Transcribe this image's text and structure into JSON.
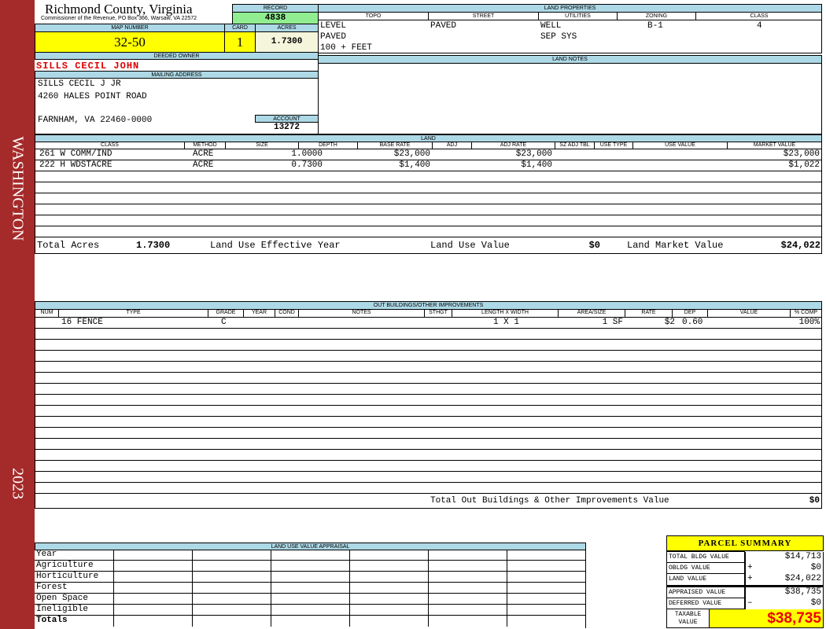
{
  "sidebar": {
    "district": "WASHINGTON",
    "year": "2023"
  },
  "header": {
    "county": "Richmond County, Virginia",
    "office": "Commissioner of the Revenue, PO Box 366, Warsaw, VA 22572"
  },
  "record": {
    "label": "RECORD",
    "value": "4838"
  },
  "map": {
    "label": "MAP NUMBER",
    "value": "32-50"
  },
  "card": {
    "label": "CARD",
    "value": "1"
  },
  "acres": {
    "label": "ACRES",
    "value": "1.7300"
  },
  "owner": {
    "label": "DEEDED OWNER",
    "value": "SILLS CECIL JOHN"
  },
  "mailing": {
    "label": "MAILING ADDRESS",
    "line1": "SILLS CECIL J JR",
    "line2": "4260 HALES POINT ROAD",
    "line3": "FARNHAM, VA 22460-0000"
  },
  "account": {
    "label": "ACCOUNT",
    "value": "13272"
  },
  "land_properties": {
    "label": "LAND PROPERTIES",
    "headers": [
      "TOPO",
      "STREET",
      "UTILITIES",
      "ZONING",
      "CLASS"
    ],
    "topo": [
      "LEVEL",
      "PAVED",
      "100 + FEET"
    ],
    "street": "PAVED",
    "utilities": [
      "WELL",
      "SEP SYS"
    ],
    "zoning": "B-1",
    "class": "4"
  },
  "land_notes": {
    "label": "LAND NOTES"
  },
  "land": {
    "label": "LAND",
    "headers": [
      "CLASS",
      "METHOD",
      "SIZE",
      "DEPTH",
      "BASE RATE",
      "ADJ",
      "ADJ RATE",
      "SZ ADJ TBL",
      "USE TYPE",
      "USE VALUE",
      "MARKET VALUE"
    ],
    "rows": [
      {
        "class": "261 W COMM/IND",
        "method": "ACRE",
        "size": "1.0000",
        "base_rate": "$23,000",
        "adj_rate": "$23,000",
        "market_value": "$23,000"
      },
      {
        "class": "222 H WDSTACRE",
        "method": "ACRE",
        "size": "0.7300",
        "base_rate": "$1,400",
        "adj_rate": "$1,400",
        "market_value": "$1,022"
      }
    ],
    "totals": {
      "total_acres_label": "Total Acres",
      "total_acres": "1.7300",
      "effective_year_label": "Land Use Effective Year",
      "use_value_label": "Land Use Value",
      "use_value": "$0",
      "market_value_label": "Land Market Value",
      "market_value": "$24,022"
    }
  },
  "outbuildings": {
    "label": "OUT BUILDINGS/OTHER IMPROVEMENTS",
    "headers": [
      "NUM",
      "TYPE",
      "GRADE",
      "YEAR",
      "COND",
      "NOTES",
      "STHGT",
      "LENGTH X WIDTH",
      "AREA/SIZE",
      "RATE",
      "DEP",
      "VALUE",
      "% COMP"
    ],
    "rows": [
      {
        "type": "16 FENCE",
        "grade": "C",
        "lxw": "1 X 1",
        "area": "1 SF",
        "rate": "$2",
        "dep": "0.60",
        "comp": "100%"
      }
    ],
    "total_label": "Total Out Buildings & Other Improvements Value",
    "total": "$0"
  },
  "luva": {
    "label": "LAND USE VALUE APPRAISAL",
    "rows": [
      "Year",
      "Agriculture",
      "Horticulture",
      "Forest",
      "Open Space",
      "Ineligible",
      "Totals"
    ]
  },
  "parcel_summary": {
    "title": "PARCEL SUMMARY",
    "rows": [
      {
        "label": "TOTAL BLDG VALUE",
        "op": "",
        "value": "$14,713"
      },
      {
        "label": "OBLDG VALUE",
        "op": "+",
        "value": "$0"
      },
      {
        "label": "LAND VALUE",
        "op": "+",
        "value": "$24,022"
      },
      {
        "label": "APPRAISED VALUE",
        "op": "",
        "value": "$38,735"
      },
      {
        "label": "DEFERRED VALUE",
        "op": "–",
        "value": "$0"
      }
    ],
    "taxable_label": "TAXABLE VALUE",
    "taxable_value": "$38,735"
  }
}
